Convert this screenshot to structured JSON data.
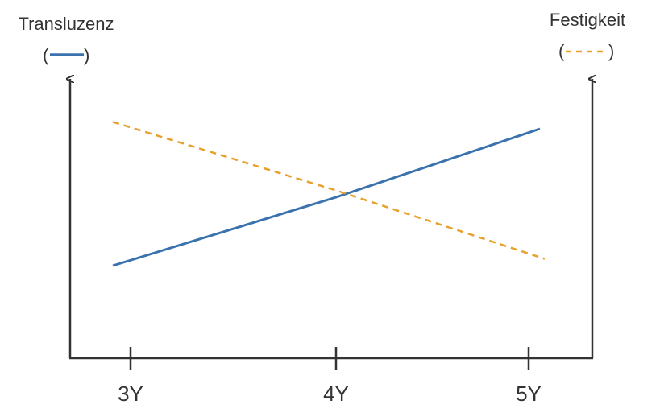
{
  "chart_data": {
    "type": "line",
    "categories": [
      "3Y",
      "4Y",
      "5Y"
    ],
    "left_axis": {
      "label": "Transluzenz",
      "legend_open": "(",
      "legend_close": ")"
    },
    "right_axis": {
      "label": "Festigkeit",
      "legend_open": "(",
      "legend_close": ")"
    },
    "series": [
      {
        "key": "transluzenz",
        "values": [
          1.0,
          2.0,
          3.0
        ],
        "color": "#3a72ad",
        "style": "solid",
        "axis": "left"
      },
      {
        "key": "festigkeit",
        "values": [
          3.0,
          2.0,
          1.0
        ],
        "color": "#e8a12b",
        "style": "dashed",
        "axis": "right"
      }
    ],
    "grid": false,
    "legend": "under-axis-titles"
  }
}
